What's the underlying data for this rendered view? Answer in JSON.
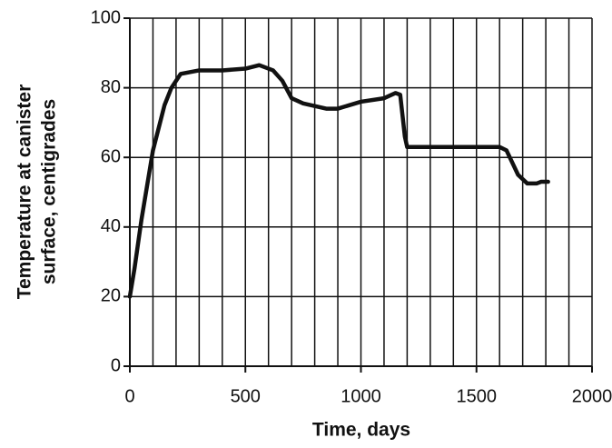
{
  "chart_data": {
    "type": "line",
    "x_label": "Time, days",
    "y_label": [
      "Temperature at canister",
      "surface, centigrades"
    ],
    "x": [
      0,
      20,
      50,
      100,
      150,
      180,
      220,
      300,
      400,
      500,
      560,
      620,
      660,
      700,
      750,
      850,
      900,
      1000,
      1100,
      1150,
      1170,
      1190,
      1200,
      1300,
      1500,
      1600,
      1630,
      1680,
      1720,
      1760,
      1780,
      1810
    ],
    "values": [
      20,
      28,
      42,
      62,
      75,
      80,
      84,
      85,
      85,
      85.5,
      86.5,
      85,
      82,
      77,
      75.5,
      74,
      74,
      76,
      77,
      78.5,
      78,
      66,
      63,
      63,
      63,
      63,
      62,
      55,
      52.5,
      52.5,
      53,
      53
    ],
    "color": "#111111",
    "xlim": [
      0,
      2000
    ],
    "xticks": [
      0,
      500,
      1000,
      1500,
      2000
    ],
    "xgrid": [
      100,
      200,
      300,
      400,
      500,
      600,
      700,
      800,
      900,
      1000,
      1100,
      1200,
      1300,
      1400,
      1500,
      1600,
      1700,
      1800,
      1900,
      2000
    ],
    "ylim": [
      0,
      100
    ],
    "yticks": [
      0,
      20,
      40,
      60,
      80,
      100
    ],
    "grid": true
  }
}
